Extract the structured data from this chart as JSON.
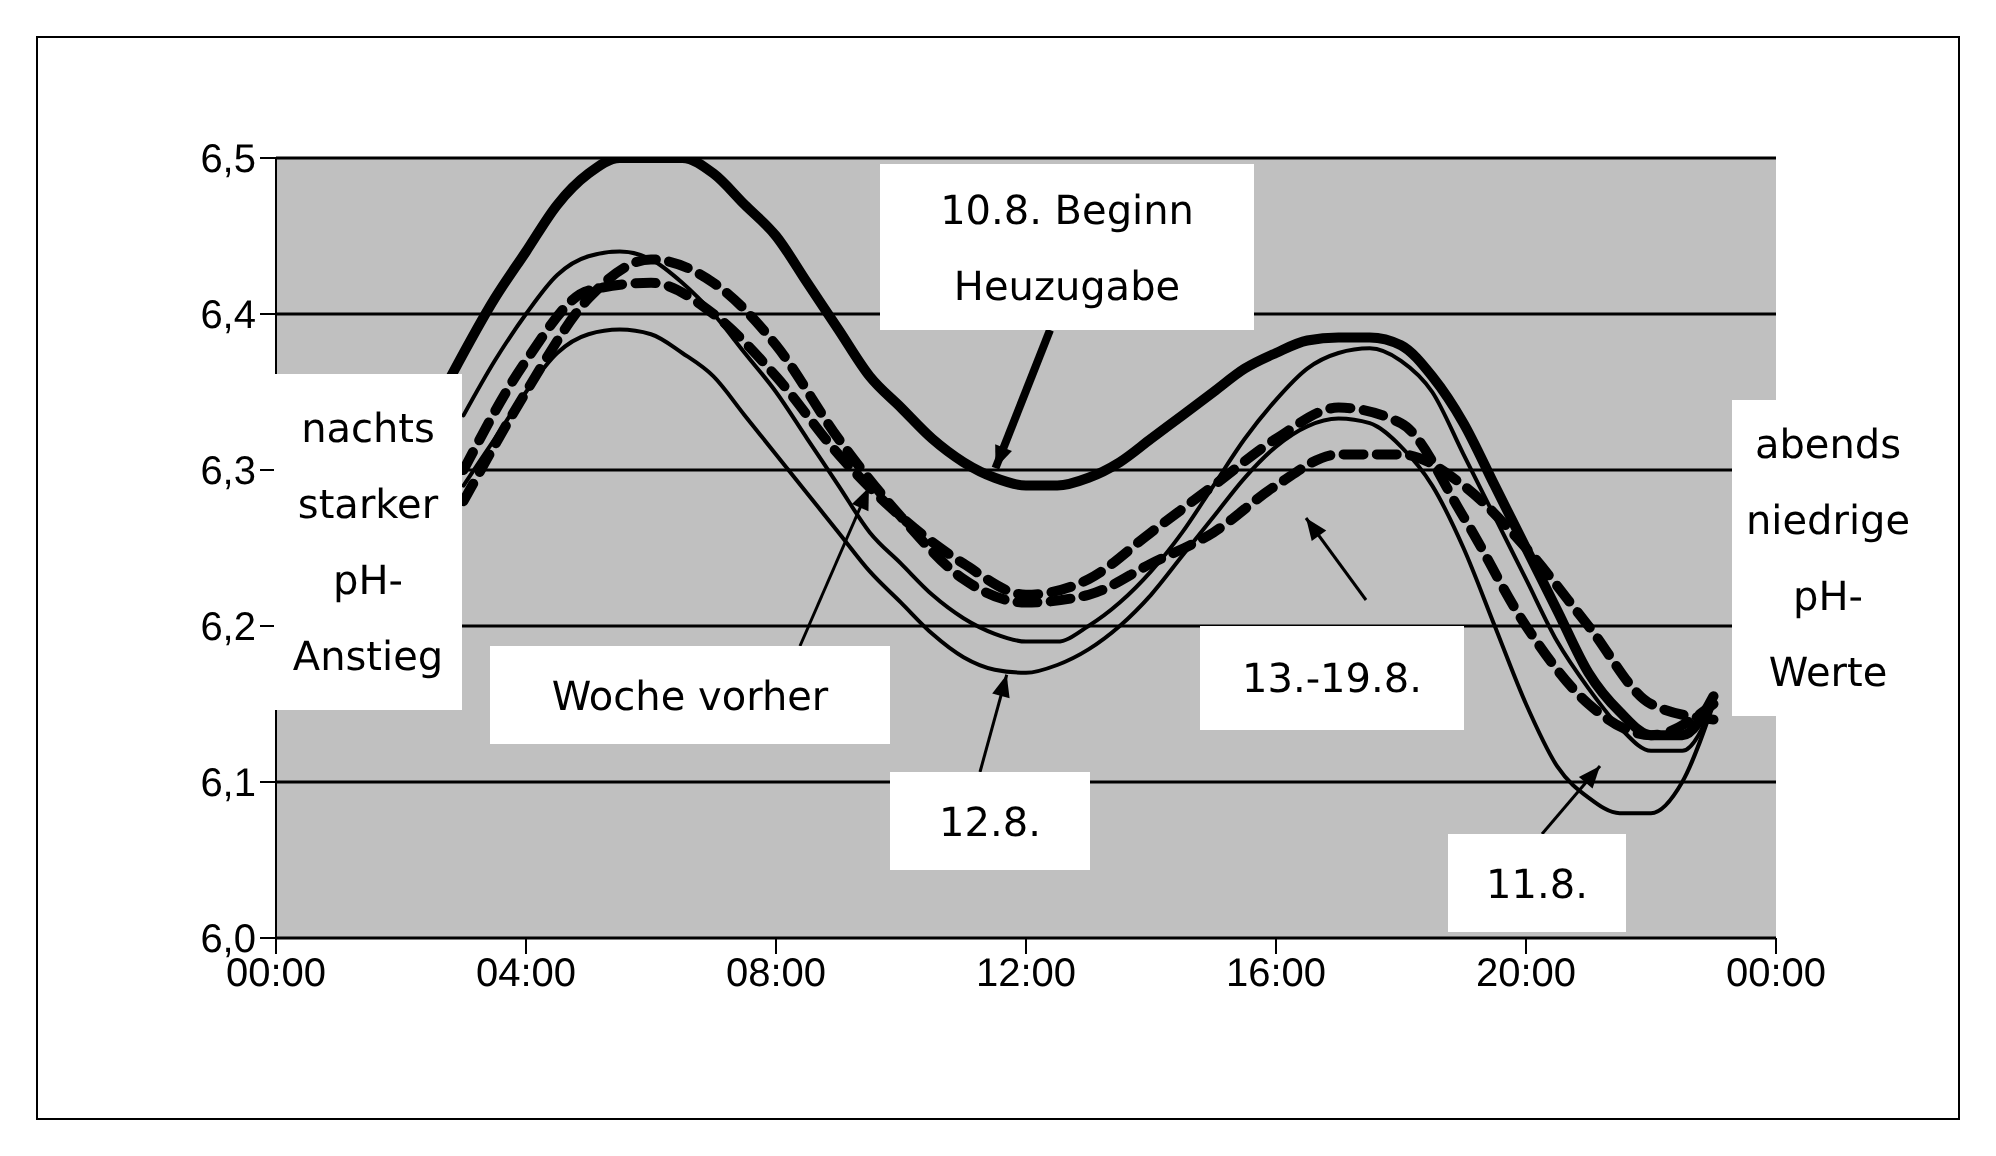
{
  "chart_data": {
    "type": "line",
    "xlim": [
      0,
      24
    ],
    "xticks": [
      {
        "value": 0,
        "label": "00:00"
      },
      {
        "value": 4,
        "label": "04:00"
      },
      {
        "value": 8,
        "label": "08:00"
      },
      {
        "value": 12,
        "label": "12:00"
      },
      {
        "value": 16,
        "label": "16:00"
      },
      {
        "value": 20,
        "label": "20:00"
      },
      {
        "value": 24,
        "label": "00:00"
      }
    ],
    "ylim": [
      6.0,
      6.5
    ],
    "yticks": [
      {
        "value": 6.0,
        "label": "6,0"
      },
      {
        "value": 6.1,
        "label": "6,1"
      },
      {
        "value": 6.2,
        "label": "6,2"
      },
      {
        "value": 6.3,
        "label": "6,3"
      },
      {
        "value": 6.4,
        "label": "6,4"
      },
      {
        "value": 6.5,
        "label": "6,5"
      }
    ],
    "grid": "y",
    "legend": false,
    "marker": "none",
    "series": [
      {
        "color": "#000000",
        "line_style": "solid",
        "x": [
          2.8,
          3.5,
          4,
          4.5,
          5,
          5.5,
          6,
          6.5,
          7,
          7.5,
          8,
          8.5,
          9,
          9.5,
          10,
          10.5,
          11,
          11.5,
          12,
          12.5,
          13,
          13.5,
          14,
          14.5,
          15,
          15.5,
          16,
          16.5,
          17,
          17.5,
          18,
          18.5,
          19,
          19.5,
          20,
          20.5,
          21,
          21.5,
          22,
          22.5,
          23
        ],
        "values": [
          6.36,
          6.41,
          6.44,
          6.47,
          6.49,
          6.5,
          6.5,
          6.5,
          6.49,
          6.47,
          6.45,
          6.42,
          6.39,
          6.36,
          6.34,
          6.32,
          6.305,
          6.295,
          6.29,
          6.29,
          6.295,
          6.305,
          6.32,
          6.335,
          6.35,
          6.365,
          6.375,
          6.383,
          6.385,
          6.385,
          6.38,
          6.36,
          6.33,
          6.29,
          6.25,
          6.21,
          6.17,
          6.145,
          6.13,
          6.13,
          6.155
        ]
      },
      {
        "color": "#000000",
        "line_style": "solid",
        "x": [
          3.0,
          3.5,
          4,
          4.5,
          5,
          5.5,
          6,
          6.5,
          7,
          7.5,
          8,
          8.5,
          9,
          9.5,
          10,
          10.5,
          11,
          11.5,
          12,
          12.5,
          13,
          13.5,
          14,
          14.5,
          15,
          15.5,
          16,
          16.5,
          17,
          17.5,
          18,
          18.5,
          19,
          19.5,
          20,
          20.5,
          21,
          21.5,
          22,
          22.5,
          23
        ],
        "values": [
          6.335,
          6.37,
          6.4,
          6.425,
          6.437,
          6.44,
          6.435,
          6.42,
          6.4,
          6.375,
          6.35,
          6.32,
          6.29,
          6.26,
          6.24,
          6.22,
          6.205,
          6.195,
          6.19,
          6.19,
          6.2,
          6.215,
          6.235,
          6.26,
          6.29,
          6.32,
          6.345,
          6.365,
          6.375,
          6.378,
          6.37,
          6.35,
          6.31,
          6.27,
          6.23,
          6.19,
          6.16,
          6.135,
          6.12,
          6.12,
          6.15
        ]
      },
      {
        "color": "#000000",
        "line_style": "solid",
        "x": [
          3.0,
          3.5,
          4,
          4.5,
          5,
          5.5,
          6,
          6.5,
          7,
          7.5,
          8,
          8.5,
          9,
          9.5,
          10,
          10.5,
          11,
          11.5,
          12,
          12.5,
          13,
          13.5,
          14,
          14.5,
          15,
          15.5,
          16,
          16.5,
          17,
          17.5,
          18,
          18.5,
          19,
          19.5,
          20,
          20.5,
          21,
          21.5,
          22,
          22.5,
          23
        ],
        "values": [
          6.29,
          6.32,
          6.35,
          6.375,
          6.387,
          6.39,
          6.387,
          6.375,
          6.36,
          6.335,
          6.31,
          6.285,
          6.26,
          6.235,
          6.215,
          6.195,
          6.18,
          6.172,
          6.17,
          6.175,
          6.185,
          6.2,
          6.22,
          6.245,
          6.27,
          6.295,
          6.315,
          6.328,
          6.333,
          6.33,
          6.315,
          6.29,
          6.25,
          6.2,
          6.15,
          6.11,
          6.09,
          6.08,
          6.08,
          6.1,
          6.15
        ]
      },
      {
        "color": "#000000",
        "line_style": "dashed",
        "x": [
          3,
          4,
          5,
          6,
          7,
          8,
          9,
          10,
          11,
          12,
          13,
          14,
          15,
          16,
          17,
          18,
          19,
          20,
          21,
          22,
          23
        ],
        "values": [
          6.28,
          6.35,
          6.41,
          6.435,
          6.42,
          6.38,
          6.32,
          6.27,
          6.23,
          6.215,
          6.22,
          6.24,
          6.26,
          6.29,
          6.31,
          6.31,
          6.29,
          6.25,
          6.2,
          6.15,
          6.14
        ]
      },
      {
        "color": "#000000",
        "line_style": "dashed",
        "x": [
          3,
          4,
          5,
          6,
          7,
          8,
          9,
          10,
          11,
          12,
          13,
          14,
          15,
          16,
          17,
          18,
          19,
          20,
          21,
          22,
          23
        ],
        "values": [
          6.3,
          6.37,
          6.415,
          6.42,
          6.4,
          6.36,
          6.31,
          6.27,
          6.24,
          6.22,
          6.23,
          6.26,
          6.29,
          6.32,
          6.34,
          6.33,
          6.27,
          6.2,
          6.15,
          6.13,
          6.15
        ]
      }
    ],
    "annotations": [
      {
        "text": "10.8. Beginn Heuzugabe",
        "x": 11.5,
        "y": 6.3
      },
      {
        "text": "Woche vorher",
        "x": 9.5,
        "y": 6.29
      },
      {
        "text": "12.8.",
        "x": 11.7,
        "y": 6.17
      },
      "13.-19.8.",
      "11.8.",
      "nachts starker pH-Anstieg",
      "abends niedrige pH-Werte"
    ]
  }
}
